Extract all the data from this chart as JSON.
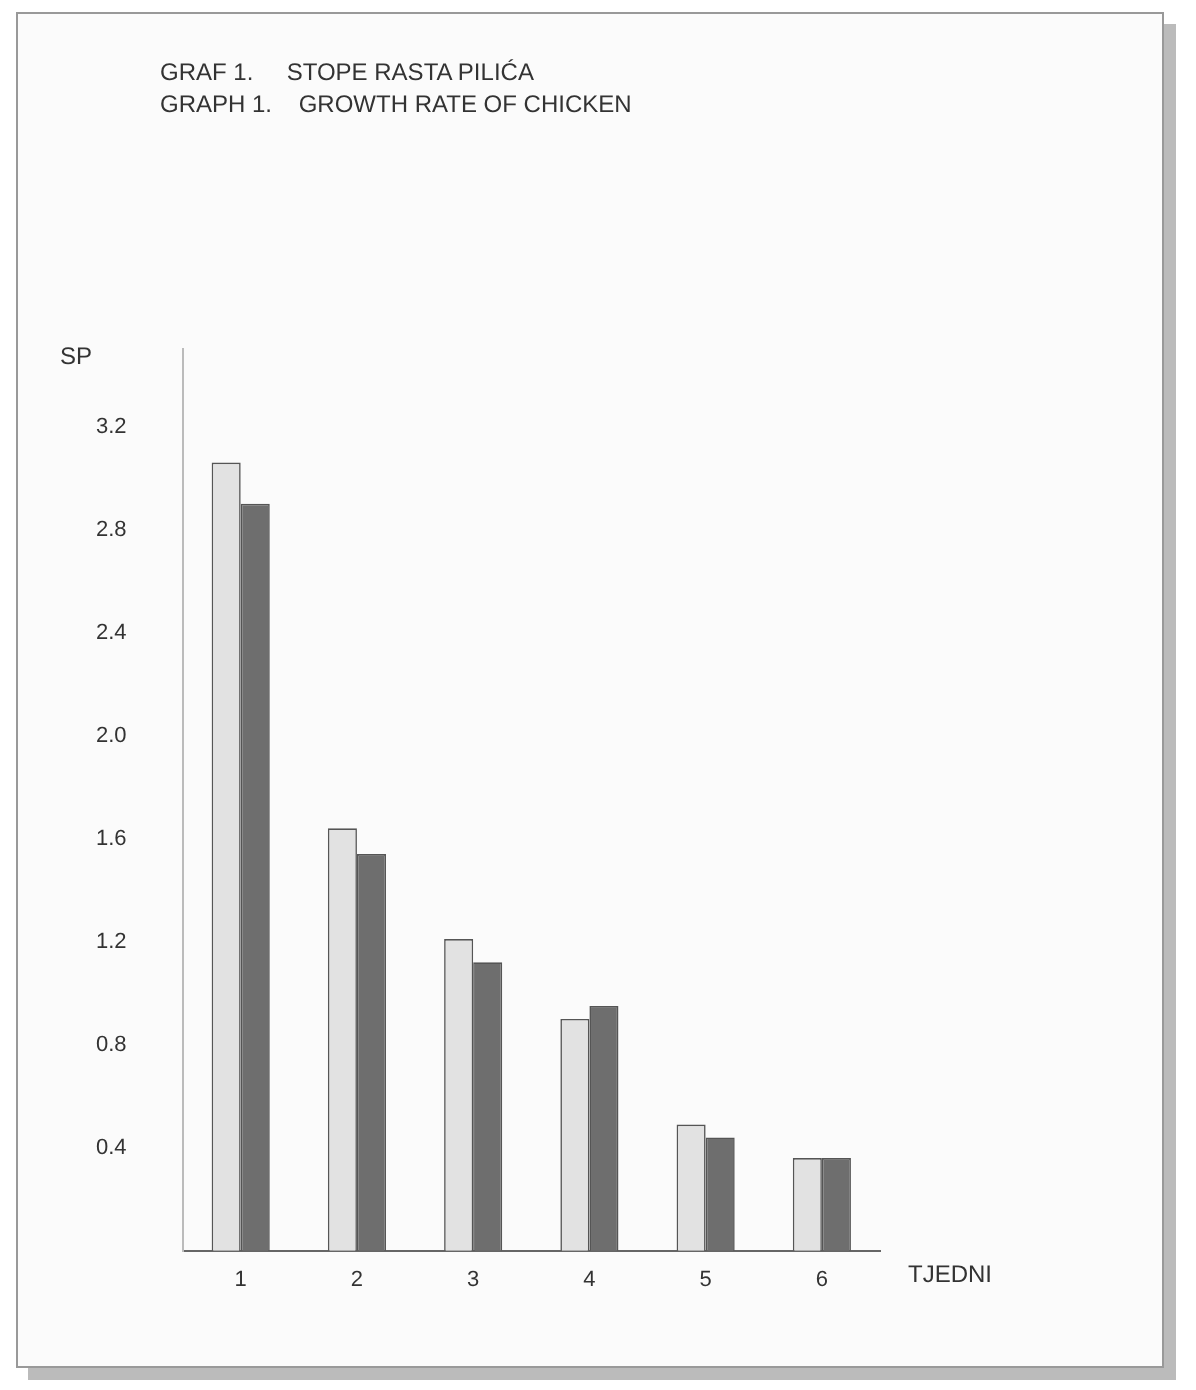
{
  "chart_data": {
    "type": "bar",
    "title": "GRAF 1.     STOPE RASTA PILIĆA",
    "subtitle": "GRAPH 1.    GROWTH RATE OF CHICKEN",
    "ylabel": "SP",
    "xlabel": "TJEDNI",
    "categories": [
      "1",
      "2",
      "3",
      "4",
      "5",
      "6"
    ],
    "series": [
      {
        "color": "#e2e2e2",
        "values": [
          3.06,
          1.64,
          1.21,
          0.9,
          0.49,
          0.36
        ]
      },
      {
        "color": "#6e6e6e",
        "values": [
          2.9,
          1.54,
          1.12,
          0.95,
          0.44,
          0.36
        ]
      }
    ],
    "ylim": [
      0,
      3.5
    ],
    "yticks": [
      0.4,
      0.8,
      1.2,
      1.6,
      {
        "value": 2,
        "label": "2.0"
      },
      2.4,
      2.8,
      3.2
    ],
    "grid": false,
    "legend": false
  }
}
